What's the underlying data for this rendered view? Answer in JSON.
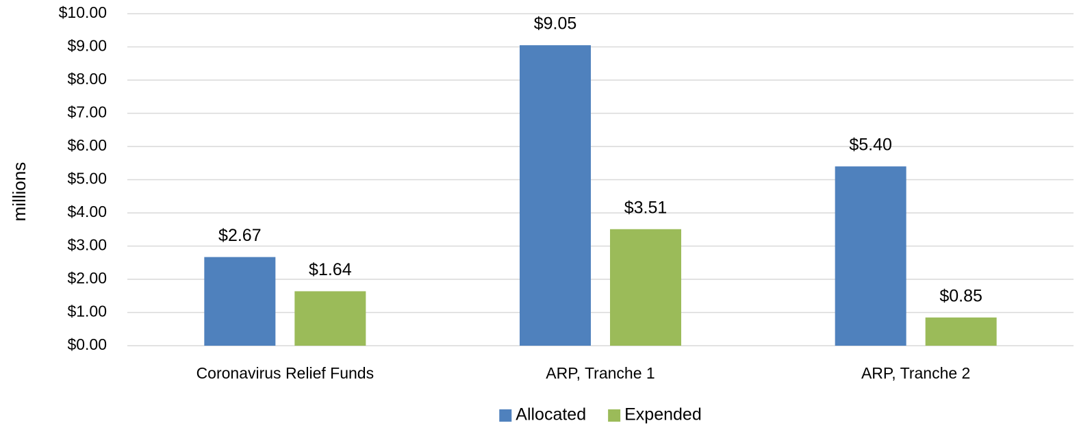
{
  "chart_data": {
    "type": "bar",
    "y_axis_label": "millions",
    "categories": [
      "Coronavirus Relief Funds",
      "ARP, Tranche 1",
      "ARP, Tranche 2"
    ],
    "series": [
      {
        "name": "Allocated",
        "color": "#4f81bd",
        "values": [
          2.67,
          9.05,
          5.4
        ],
        "value_labels": [
          "$2.67",
          "$9.05",
          "$5.40"
        ]
      },
      {
        "name": "Expended",
        "color": "#9bbb59",
        "values": [
          1.64,
          3.51,
          0.85
        ],
        "value_labels": [
          "$1.64",
          "$3.51",
          "$0.85"
        ]
      }
    ],
    "ylim": [
      0,
      10
    ],
    "yticks": [
      {
        "value": 0,
        "label": "$0.00"
      },
      {
        "value": 1,
        "label": "$1.00"
      },
      {
        "value": 2,
        "label": "$2.00"
      },
      {
        "value": 3,
        "label": "$3.00"
      },
      {
        "value": 4,
        "label": "$4.00"
      },
      {
        "value": 5,
        "label": "$5.00"
      },
      {
        "value": 6,
        "label": "$6.00"
      },
      {
        "value": 7,
        "label": "$7.00"
      },
      {
        "value": 8,
        "label": "$8.00"
      },
      {
        "value": 9,
        "label": "$9.00"
      },
      {
        "value": 10,
        "label": "$10.00"
      }
    ],
    "grid": true,
    "legend": "bottom"
  }
}
